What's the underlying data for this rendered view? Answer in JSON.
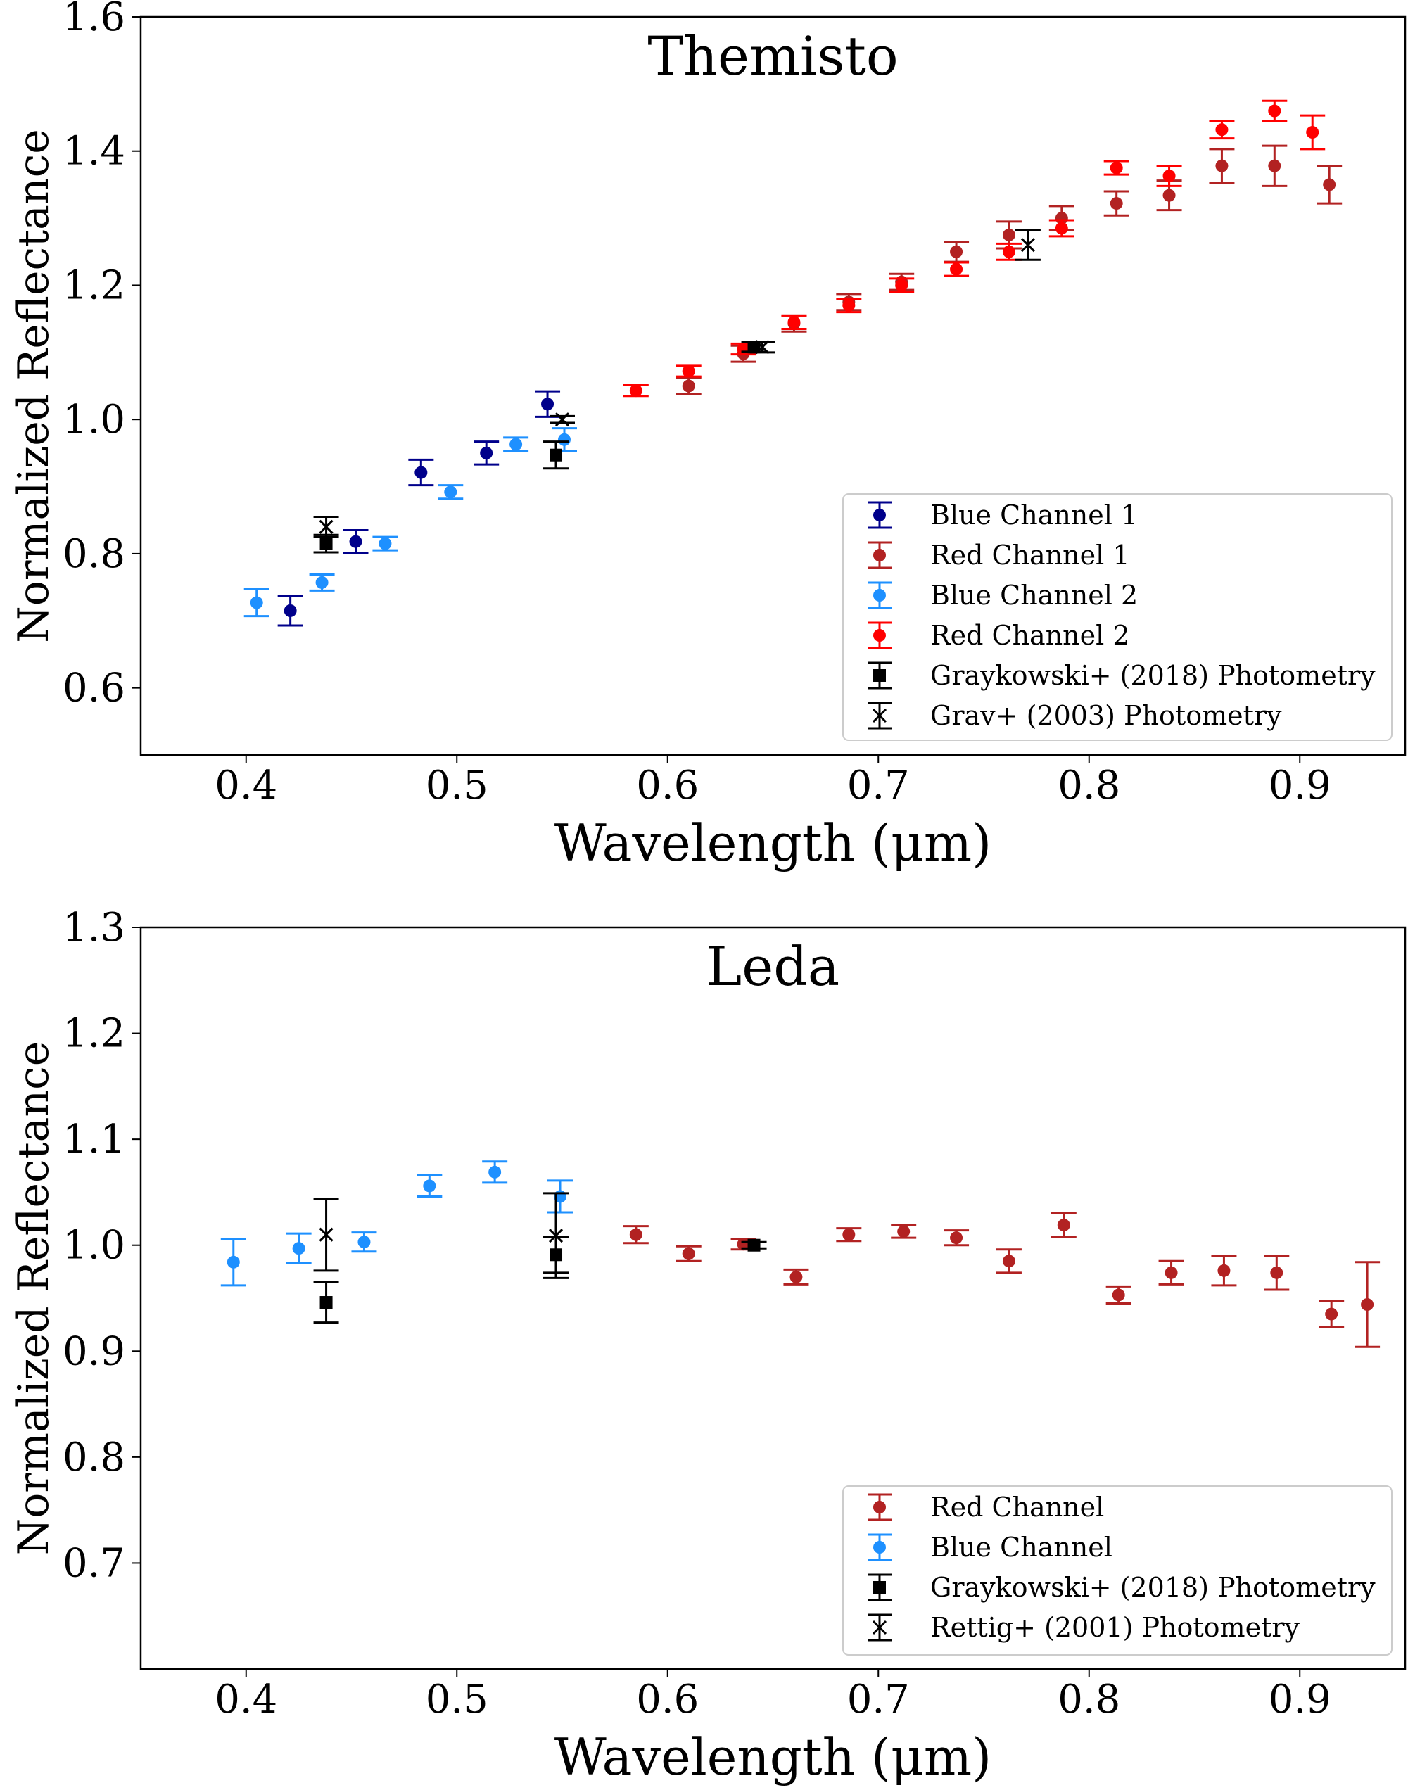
{
  "chart_data": [
    {
      "type": "scatter",
      "title": "Themisto",
      "xlabel": "Wavelength (μm)",
      "ylabel": "Normalized Reflectance",
      "xlim": [
        0.35,
        0.95
      ],
      "ylim": [
        0.5,
        1.6
      ],
      "xticks": [
        "0.4",
        "0.5",
        "0.6",
        "0.7",
        "0.8",
        "0.9"
      ],
      "yticks": [
        "0.6",
        "0.8",
        "1.0",
        "1.2",
        "1.4",
        "1.6"
      ],
      "legend_position": "lower-right",
      "series": [
        {
          "name": "Blue Channel 1",
          "color": "#00008b",
          "marker": "circle",
          "points": [
            {
              "x": 0.421,
              "y": 0.715,
              "err": 0.022
            },
            {
              "x": 0.452,
              "y": 0.818,
              "err": 0.017
            },
            {
              "x": 0.483,
              "y": 0.921,
              "err": 0.019
            },
            {
              "x": 0.514,
              "y": 0.95,
              "err": 0.017
            },
            {
              "x": 0.543,
              "y": 1.023,
              "err": 0.019
            }
          ]
        },
        {
          "name": "Red Channel 1",
          "color": "#b22222",
          "marker": "circle",
          "points": [
            {
              "x": 0.61,
              "y": 1.05,
              "err": 0.012
            },
            {
              "x": 0.636,
              "y": 1.098,
              "err": 0.012
            },
            {
              "x": 0.66,
              "y": 1.143,
              "err": 0.012
            },
            {
              "x": 0.686,
              "y": 1.175,
              "err": 0.012
            },
            {
              "x": 0.711,
              "y": 1.205,
              "err": 0.012
            },
            {
              "x": 0.737,
              "y": 1.25,
              "err": 0.015
            },
            {
              "x": 0.762,
              "y": 1.275,
              "err": 0.02
            },
            {
              "x": 0.787,
              "y": 1.3,
              "err": 0.018
            },
            {
              "x": 0.813,
              "y": 1.322,
              "err": 0.018
            },
            {
              "x": 0.838,
              "y": 1.334,
              "err": 0.022
            },
            {
              "x": 0.863,
              "y": 1.378,
              "err": 0.025
            },
            {
              "x": 0.888,
              "y": 1.378,
              "err": 0.03
            },
            {
              "x": 0.914,
              "y": 1.35,
              "err": 0.028
            }
          ]
        },
        {
          "name": "Blue Channel 2",
          "color": "#1e90ff",
          "marker": "circle",
          "points": [
            {
              "x": 0.405,
              "y": 0.727,
              "err": 0.02
            },
            {
              "x": 0.436,
              "y": 0.757,
              "err": 0.012
            },
            {
              "x": 0.466,
              "y": 0.815,
              "err": 0.01
            },
            {
              "x": 0.497,
              "y": 0.892,
              "err": 0.01
            },
            {
              "x": 0.528,
              "y": 0.963,
              "err": 0.01
            },
            {
              "x": 0.551,
              "y": 0.97,
              "err": 0.017
            }
          ]
        },
        {
          "name": "Red Channel 2",
          "color": "#ff0000",
          "marker": "circle",
          "points": [
            {
              "x": 0.585,
              "y": 1.043,
              "err": 0.008
            },
            {
              "x": 0.61,
              "y": 1.072,
              "err": 0.008
            },
            {
              "x": 0.636,
              "y": 1.105,
              "err": 0.008
            },
            {
              "x": 0.66,
              "y": 1.145,
              "err": 0.01
            },
            {
              "x": 0.686,
              "y": 1.17,
              "err": 0.01
            },
            {
              "x": 0.711,
              "y": 1.2,
              "err": 0.01
            },
            {
              "x": 0.737,
              "y": 1.224,
              "err": 0.01
            },
            {
              "x": 0.762,
              "y": 1.25,
              "err": 0.012
            },
            {
              "x": 0.787,
              "y": 1.285,
              "err": 0.012
            },
            {
              "x": 0.813,
              "y": 1.375,
              "err": 0.01
            },
            {
              "x": 0.838,
              "y": 1.363,
              "err": 0.015
            },
            {
              "x": 0.863,
              "y": 1.432,
              "err": 0.013
            },
            {
              "x": 0.888,
              "y": 1.46,
              "err": 0.015
            },
            {
              "x": 0.906,
              "y": 1.428,
              "err": 0.025
            }
          ]
        },
        {
          "name": "Graykowski+ (2018) Photometry",
          "color": "#000000",
          "marker": "square",
          "points": [
            {
              "x": 0.438,
              "y": 0.815,
              "err": 0.013
            },
            {
              "x": 0.547,
              "y": 0.947,
              "err": 0.02
            },
            {
              "x": 0.641,
              "y": 1.108,
              "err": 0.007
            }
          ]
        },
        {
          "name": "Grav+ (2003) Photometry",
          "color": "#000000",
          "marker": "x",
          "points": [
            {
              "x": 0.438,
              "y": 0.84,
              "err": 0.015
            },
            {
              "x": 0.55,
              "y": 1.0,
              "err": 0.005
            },
            {
              "x": 0.645,
              "y": 1.108,
              "err": 0.008
            },
            {
              "x": 0.771,
              "y": 1.26,
              "err": 0.022
            }
          ]
        }
      ]
    },
    {
      "type": "scatter",
      "title": "Leda",
      "xlabel": "Wavelength (μm)",
      "ylabel": "Normalized Reflectance",
      "xlim": [
        0.35,
        0.95
      ],
      "ylim": [
        0.6,
        1.3
      ],
      "xticks": [
        "0.4",
        "0.5",
        "0.6",
        "0.7",
        "0.8",
        "0.9"
      ],
      "yticks": [
        "0.7",
        "0.8",
        "0.9",
        "1.0",
        "1.1",
        "1.2",
        "1.3"
      ],
      "legend_position": "lower-right",
      "series": [
        {
          "name": "Red Channel",
          "color": "#b22222",
          "marker": "circle",
          "points": [
            {
              "x": 0.585,
              "y": 1.01,
              "err": 0.008
            },
            {
              "x": 0.61,
              "y": 0.992,
              "err": 0.007
            },
            {
              "x": 0.636,
              "y": 1.001,
              "err": 0.005
            },
            {
              "x": 0.661,
              "y": 0.97,
              "err": 0.007
            },
            {
              "x": 0.686,
              "y": 1.01,
              "err": 0.006
            },
            {
              "x": 0.712,
              "y": 1.013,
              "err": 0.006
            },
            {
              "x": 0.737,
              "y": 1.007,
              "err": 0.007
            },
            {
              "x": 0.762,
              "y": 0.985,
              "err": 0.011
            },
            {
              "x": 0.788,
              "y": 1.019,
              "err": 0.011
            },
            {
              "x": 0.814,
              "y": 0.953,
              "err": 0.008
            },
            {
              "x": 0.839,
              "y": 0.974,
              "err": 0.011
            },
            {
              "x": 0.864,
              "y": 0.976,
              "err": 0.014
            },
            {
              "x": 0.889,
              "y": 0.974,
              "err": 0.016
            },
            {
              "x": 0.915,
              "y": 0.935,
              "err": 0.012
            },
            {
              "x": 0.932,
              "y": 0.944,
              "err": 0.04
            }
          ]
        },
        {
          "name": "Blue Channel",
          "color": "#1e90ff",
          "marker": "circle",
          "points": [
            {
              "x": 0.394,
              "y": 0.984,
              "err": 0.022
            },
            {
              "x": 0.425,
              "y": 0.997,
              "err": 0.014
            },
            {
              "x": 0.456,
              "y": 1.003,
              "err": 0.009
            },
            {
              "x": 0.487,
              "y": 1.056,
              "err": 0.01
            },
            {
              "x": 0.518,
              "y": 1.069,
              "err": 0.01
            },
            {
              "x": 0.549,
              "y": 1.046,
              "err": 0.015
            }
          ]
        },
        {
          "name": "Graykowski+ (2018) Photometry",
          "color": "#000000",
          "marker": "square",
          "points": [
            {
              "x": 0.438,
              "y": 0.946,
              "err": 0.019
            },
            {
              "x": 0.547,
              "y": 0.991,
              "err": 0.017
            },
            {
              "x": 0.641,
              "y": 1.0,
              "err": 0.003
            }
          ]
        },
        {
          "name": "Rettig+ (2001) Photometry",
          "color": "#000000",
          "marker": "x",
          "points": [
            {
              "x": 0.438,
              "y": 1.01,
              "err": 0.034
            },
            {
              "x": 0.547,
              "y": 1.009,
              "err": 0.04
            }
          ]
        }
      ]
    }
  ]
}
